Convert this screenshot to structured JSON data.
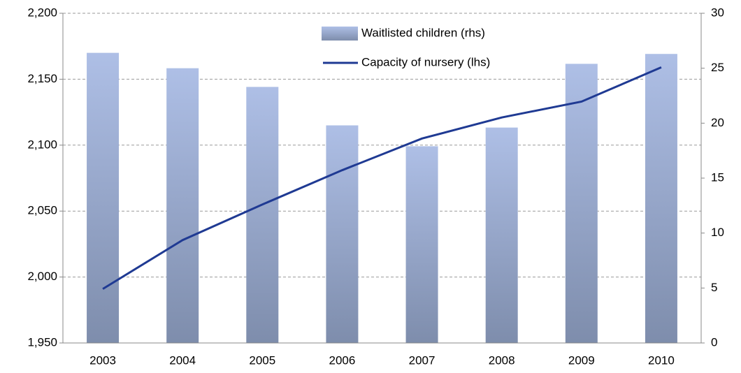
{
  "chart_data": {
    "type": "bar-line",
    "categories": [
      "2003",
      "2004",
      "2005",
      "2006",
      "2007",
      "2008",
      "2009",
      "2010"
    ],
    "series": [
      {
        "name": "Waitlisted children (rhs)",
        "type": "bar",
        "axis": "y2",
        "color": "#a9b9df",
        "values": [
          26.4,
          25.0,
          23.3,
          19.8,
          17.9,
          19.6,
          25.4,
          26.3
        ]
      },
      {
        "name": "Capacity of nursery (lhs)",
        "type": "line",
        "axis": "y",
        "color": "#1f3a93",
        "values": [
          1991,
          2028,
          2055,
          2081,
          2105,
          2121,
          2133,
          2159
        ]
      }
    ],
    "ylim": [
      1950,
      2200
    ],
    "yticks": [
      {
        "value": 1950,
        "label": "1,950"
      },
      {
        "value": 2000,
        "label": "2,000"
      },
      {
        "value": 2050,
        "label": "2,050"
      },
      {
        "value": 2100,
        "label": "2,100"
      },
      {
        "value": 2150,
        "label": "2,150"
      },
      {
        "value": 2200,
        "label": "2,200"
      }
    ],
    "y2lim": [
      0,
      30
    ],
    "y2ticks": [
      0,
      5,
      10,
      15,
      20,
      25,
      30
    ],
    "grid": true
  }
}
